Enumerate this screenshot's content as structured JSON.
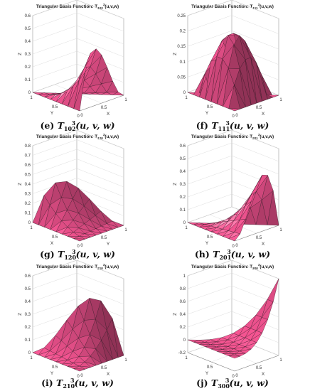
{
  "chart_data": [
    {
      "id": "e",
      "type": "surface",
      "title": "Triangular Basis Function: T",
      "title_sub": "102",
      "title_sup": "3",
      "title_args": "(u,v,w)",
      "caption_prefix": "(e)",
      "caption_T": "T",
      "caption_sub": "102",
      "caption_sup": "3",
      "caption_args": "(u, v, w)",
      "exponents": [
        1,
        0,
        2
      ],
      "xlabel": "X",
      "ylabel": "Y",
      "zlabel": "Z",
      "xlim": [
        0,
        1
      ],
      "ylim": [
        0,
        1
      ],
      "zlim": [
        0,
        0.6
      ],
      "x_ticks": [
        "0",
        "0.5",
        "1"
      ],
      "y_ticks": [
        "0",
        "0.5",
        "1"
      ],
      "z_ticks": [
        "0",
        "0.1",
        "0.2",
        "0.3",
        "0.4",
        "0.5",
        "0.6"
      ],
      "grid": true,
      "color": "#e8508a"
    },
    {
      "id": "f",
      "type": "surface",
      "title": "Triangular Basis Function: T",
      "title_sub": "111",
      "title_sup": "3",
      "title_args": "(u,v,w)",
      "caption_prefix": "(f)",
      "caption_T": "T",
      "caption_sub": "111",
      "caption_sup": "3",
      "caption_args": "(u, v, w)",
      "exponents": [
        1,
        1,
        1
      ],
      "xlabel": "X",
      "ylabel": "Y",
      "zlabel": "Z",
      "xlim": [
        0,
        1
      ],
      "ylim": [
        0,
        1
      ],
      "zlim": [
        0,
        0.25
      ],
      "x_ticks": [
        "0",
        "0.5",
        "1"
      ],
      "y_ticks": [
        "0",
        "0.5",
        "1"
      ],
      "z_ticks": [
        "0",
        "0.05",
        "0.1",
        "0.15",
        "0.2",
        "0.25"
      ],
      "grid": true,
      "color": "#e8508a"
    },
    {
      "id": "g",
      "type": "surface",
      "title": "Triangular Basis Function: T",
      "title_sub": "120",
      "title_sup": "3",
      "title_args": "(u,v,w)",
      "caption_prefix": "(g)",
      "caption_T": "T",
      "caption_sub": "120",
      "caption_sup": "3",
      "caption_args": "(u, v, w)",
      "exponents": [
        1,
        2,
        0
      ],
      "xlabel": "Y",
      "ylabel": "X",
      "zlabel": "Z",
      "xlim": [
        0,
        1
      ],
      "ylim": [
        0,
        1
      ],
      "zlim": [
        0,
        0.8
      ],
      "x_ticks": [
        "0",
        "0.5",
        "1"
      ],
      "y_ticks": [
        "0",
        "0.5",
        "1"
      ],
      "z_ticks": [
        "0",
        "0.1",
        "0.2",
        "0.3",
        "0.4",
        "0.5",
        "0.6",
        "0.7",
        "0.8"
      ],
      "grid": true,
      "color": "#e8508a"
    },
    {
      "id": "h",
      "type": "surface",
      "title": "Triangular Basis Function: T",
      "title_sub": "201",
      "title_sup": "3",
      "title_args": "(u,v,w)",
      "caption_prefix": "(h)",
      "caption_T": "T",
      "caption_sub": "201",
      "caption_sup": "3",
      "caption_args": "(u, v, w)",
      "exponents": [
        2,
        0,
        1
      ],
      "xlabel": "X",
      "ylabel": "Y",
      "zlabel": "Z",
      "xlim": [
        0,
        1
      ],
      "ylim": [
        0,
        1
      ],
      "zlim": [
        0,
        0.6
      ],
      "x_ticks": [
        "0",
        "0.5",
        "1"
      ],
      "y_ticks": [
        "0",
        "0.5",
        "1"
      ],
      "z_ticks": [
        "0",
        "0.1",
        "0.2",
        "0.3",
        "0.4",
        "0.5",
        "0.6"
      ],
      "grid": true,
      "color": "#e8508a"
    },
    {
      "id": "i",
      "type": "surface",
      "title": "Triangular Basis Function: T",
      "title_sub": "210",
      "title_sup": "3",
      "title_args": "(u,v,w)",
      "caption_prefix": "(i)",
      "caption_T": "T",
      "caption_sub": "210",
      "caption_sup": "3",
      "caption_args": "(u, v, w)",
      "exponents": [
        2,
        1,
        0
      ],
      "xlabel": "X",
      "ylabel": "Y",
      "zlabel": "Z",
      "xlim": [
        0,
        1
      ],
      "ylim": [
        0,
        1
      ],
      "zlim": [
        0,
        0.6
      ],
      "x_ticks": [
        "0",
        "0.5",
        "1"
      ],
      "y_ticks": [
        "0",
        "0.5",
        "1"
      ],
      "z_ticks": [
        "0",
        "0.1",
        "0.2",
        "0.3",
        "0.4",
        "0.5",
        "0.6"
      ],
      "grid": true,
      "color": "#e8508a"
    },
    {
      "id": "j",
      "type": "surface",
      "title": "Triangular Basis Function: T",
      "title_sub": "300",
      "title_sup": "3",
      "title_args": "(u,v,w)",
      "caption_prefix": "(j)",
      "caption_T": "T",
      "caption_sub": "300",
      "caption_sup": "3",
      "caption_args": "(u, v, w)",
      "exponents": [
        3,
        0,
        0
      ],
      "xlabel": "X",
      "ylabel": "Y",
      "zlabel": "Z",
      "xlim": [
        0,
        1
      ],
      "ylim": [
        0,
        1
      ],
      "zlim": [
        -0.2,
        1
      ],
      "x_ticks": [
        "0",
        "0.5",
        "1"
      ],
      "y_ticks": [
        "0",
        "0.5",
        "1"
      ],
      "z_ticks": [
        "-0.2",
        "0",
        "0.2",
        "0.4",
        "0.6",
        "0.8",
        "1"
      ],
      "grid": true,
      "color": "#e8508a"
    }
  ]
}
